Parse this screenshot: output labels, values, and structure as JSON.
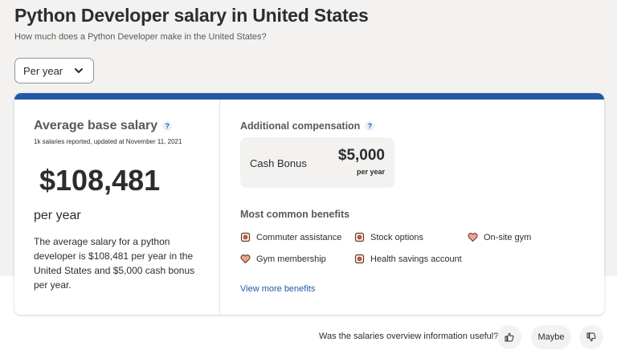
{
  "header": {
    "title": "Python Developer salary in United States",
    "subtitle": "How much does a Python Developer make in the United States?"
  },
  "period_select": {
    "selected": "Per year",
    "icon": "chevron-down-icon"
  },
  "average": {
    "title": "Average base salary",
    "help_icon": "?",
    "meta": "1k salaries reported, updated at November 11, 2021",
    "amount": "$108,481",
    "period": "per year",
    "description": "The average salary for a python developer is $108,481 per year in the United States and $5,000 cash bonus per year."
  },
  "additional": {
    "title": "Additional compensation",
    "help_icon": "?",
    "bonus_label": "Cash Bonus",
    "bonus_amount": "$5,000",
    "bonus_period": "per year"
  },
  "benefits": {
    "title": "Most common benefits",
    "items": [
      {
        "label": "Commuter assistance",
        "icon": "piggy-bank-icon"
      },
      {
        "label": "Stock options",
        "icon": "piggy-bank-icon"
      },
      {
        "label": "On-site gym",
        "icon": "heart-icon"
      },
      {
        "label": "Gym membership",
        "icon": "heart-icon"
      },
      {
        "label": "Health savings account",
        "icon": "piggy-bank-icon"
      }
    ],
    "view_more": "View more benefits"
  },
  "feedback": {
    "question": "Was the salaries overview information useful?",
    "maybe_label": "Maybe",
    "yes_icon": "thumbs-up-icon",
    "no_icon": "thumbs-down-icon"
  },
  "colors": {
    "accent": "#2557a7",
    "text": "#2d2d2d",
    "muted": "#595959",
    "background": "#f3f2f1"
  }
}
